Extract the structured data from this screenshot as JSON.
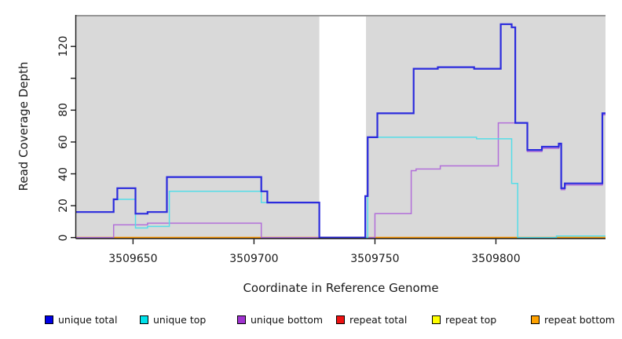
{
  "chart_data": {
    "type": "line",
    "step": true,
    "title": "",
    "xlabel": "Coordinate in Reference Genome",
    "ylabel": "Read Coverage Depth",
    "x_range": [
      3509626.5,
      3509845.3
    ],
    "y_range": [
      0,
      139.8
    ],
    "grid": false,
    "panel": {
      "bg": "#d9d9d9",
      "top_border": "#969696",
      "gap_fill": "#ffffff"
    },
    "gap_region": {
      "x_start": 3509727,
      "x_end": 3509746.3
    },
    "x_ticks": {
      "values": [
        3509650,
        3509700,
        3509750,
        3509800
      ],
      "labels": [
        "3509650",
        "3509700",
        "3509750",
        "3509800"
      ]
    },
    "y_ticks": {
      "values": [
        0,
        20,
        40,
        60,
        80,
        100,
        120
      ],
      "labels": [
        "0",
        "20",
        "40",
        "60",
        "80",
        "",
        "120"
      ]
    },
    "series": [
      {
        "name": "repeat total",
        "color": "#dd4444",
        "width": 1.2,
        "points": [
          [
            3509626.5,
            0
          ]
        ]
      },
      {
        "name": "repeat top",
        "color": "#f2e900",
        "width": 1.2,
        "points": [
          [
            3509626.5,
            0
          ]
        ]
      },
      {
        "name": "repeat bottom",
        "color": "#ff9d0a",
        "width": 1.8,
        "points": [
          [
            3509626.5,
            0
          ]
        ]
      },
      {
        "name": "unique bottom",
        "color": "#b26fd9",
        "width": 1.5,
        "points": [
          [
            3509626.5,
            0
          ],
          [
            3509642,
            8
          ],
          [
            3509656,
            9
          ],
          [
            3509703,
            0
          ],
          [
            3509750,
            15
          ],
          [
            3509765,
            42
          ],
          [
            3509767,
            43
          ],
          [
            3509777,
            45
          ],
          [
            3509801,
            72
          ],
          [
            3509813,
            54
          ],
          [
            3509819,
            56
          ],
          [
            3509826,
            58
          ],
          [
            3509827,
            30
          ],
          [
            3509828.5,
            33
          ],
          [
            3509844,
            77
          ]
        ]
      },
      {
        "name": "unique top",
        "color": "#55dde8",
        "width": 1.5,
        "points": [
          [
            3509626.5,
            16
          ],
          [
            3509642,
            24
          ],
          [
            3509651,
            6
          ],
          [
            3509656,
            7
          ],
          [
            3509665,
            29
          ],
          [
            3509703,
            22
          ],
          [
            3509727,
            0
          ],
          [
            3509747,
            63
          ],
          [
            3509792,
            62
          ],
          [
            3509806.5,
            34
          ],
          [
            3509809,
            0
          ],
          [
            3509825,
            1
          ]
        ]
      },
      {
        "name": "unique total",
        "color": "#2b2bdd",
        "width": 2.2,
        "points": [
          [
            3509626.5,
            16
          ],
          [
            3509642,
            24
          ],
          [
            3509643.5,
            31
          ],
          [
            3509651,
            15
          ],
          [
            3509656,
            16
          ],
          [
            3509664,
            38
          ],
          [
            3509703,
            29
          ],
          [
            3509705.5,
            22
          ],
          [
            3509727,
            0
          ],
          [
            3509746,
            26
          ],
          [
            3509747,
            63
          ],
          [
            3509751,
            78
          ],
          [
            3509766,
            106
          ],
          [
            3509776,
            107
          ],
          [
            3509791,
            106
          ],
          [
            3509802,
            134
          ],
          [
            3509806.5,
            132
          ],
          [
            3509808,
            72
          ],
          [
            3509813,
            55
          ],
          [
            3509819,
            57
          ],
          [
            3509826,
            59
          ],
          [
            3509827,
            31
          ],
          [
            3509828.5,
            34
          ],
          [
            3509844,
            78
          ]
        ]
      }
    ],
    "legend": {
      "position": "bottom",
      "items": [
        {
          "label": "unique total",
          "color": "#0000e6"
        },
        {
          "label": "unique top",
          "color": "#00e1ea"
        },
        {
          "label": "unique bottom",
          "color": "#a133d1"
        },
        {
          "label": "repeat total",
          "color": "#ee1111"
        },
        {
          "label": "repeat top",
          "color": "#ffff00"
        },
        {
          "label": "repeat bottom",
          "color": "#ffa200"
        }
      ]
    }
  }
}
